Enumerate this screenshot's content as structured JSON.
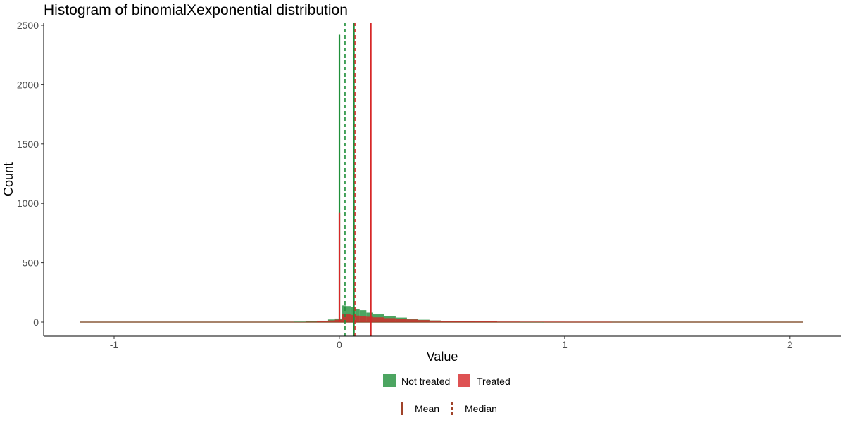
{
  "colors": {
    "not_treated": "#1f8f3a",
    "treated": "#d62728",
    "legend_line": "#a0432a",
    "axis": "#000000"
  },
  "chart_data": {
    "type": "histogram",
    "title": "Histogram of binomialXexponential distribution",
    "xlabel": "Value",
    "ylabel": "Count",
    "xlim": [
      -1.15,
      2.06
    ],
    "ylim": [
      0,
      2500
    ],
    "x_ticks": [
      -1,
      0,
      1,
      2
    ],
    "y_ticks": [
      0,
      500,
      1000,
      1500,
      2000,
      2500
    ],
    "grid": false,
    "legend_position": "bottom",
    "series": [
      {
        "name": "Not treated",
        "color_key": "not_treated",
        "spike_x": 0.0,
        "spike_count": 2420,
        "bins": [
          {
            "x": -0.2,
            "count": 3
          },
          {
            "x": -0.15,
            "count": 6
          },
          {
            "x": -0.1,
            "count": 12
          },
          {
            "x": -0.05,
            "count": 22
          },
          {
            "x": -0.02,
            "count": 30
          },
          {
            "x": 0.01,
            "count": 140
          },
          {
            "x": 0.03,
            "count": 135
          },
          {
            "x": 0.05,
            "count": 125
          },
          {
            "x": 0.07,
            "count": 110
          },
          {
            "x": 0.09,
            "count": 100
          },
          {
            "x": 0.12,
            "count": 80
          },
          {
            "x": 0.15,
            "count": 65
          },
          {
            "x": 0.2,
            "count": 50
          },
          {
            "x": 0.25,
            "count": 38
          },
          {
            "x": 0.3,
            "count": 28
          },
          {
            "x": 0.35,
            "count": 20
          },
          {
            "x": 0.4,
            "count": 14
          },
          {
            "x": 0.45,
            "count": 10
          },
          {
            "x": 0.5,
            "count": 8
          },
          {
            "x": 0.6,
            "count": 5
          },
          {
            "x": 0.7,
            "count": 3
          },
          {
            "x": 0.8,
            "count": 2
          },
          {
            "x": 0.9,
            "count": 1
          }
        ],
        "mean": 0.065,
        "median": 0.025
      },
      {
        "name": "Treated",
        "color_key": "treated",
        "spike_x": 0.0,
        "spike_count": 920,
        "bins": [
          {
            "x": -0.15,
            "count": 3
          },
          {
            "x": -0.1,
            "count": 8
          },
          {
            "x": -0.05,
            "count": 14
          },
          {
            "x": -0.02,
            "count": 20
          },
          {
            "x": 0.01,
            "count": 70
          },
          {
            "x": 0.03,
            "count": 65
          },
          {
            "x": 0.05,
            "count": 60
          },
          {
            "x": 0.07,
            "count": 55
          },
          {
            "x": 0.09,
            "count": 50
          },
          {
            "x": 0.12,
            "count": 45
          },
          {
            "x": 0.15,
            "count": 40
          },
          {
            "x": 0.2,
            "count": 33
          },
          {
            "x": 0.25,
            "count": 27
          },
          {
            "x": 0.3,
            "count": 22
          },
          {
            "x": 0.35,
            "count": 17
          },
          {
            "x": 0.4,
            "count": 13
          },
          {
            "x": 0.45,
            "count": 10
          },
          {
            "x": 0.5,
            "count": 8
          },
          {
            "x": 0.6,
            "count": 6
          },
          {
            "x": 0.7,
            "count": 4
          },
          {
            "x": 0.8,
            "count": 3
          },
          {
            "x": 1.0,
            "count": 2
          },
          {
            "x": 1.2,
            "count": 1
          }
        ],
        "mean": 0.14,
        "median": 0.07
      }
    ],
    "legend_fill": [
      {
        "label": "Not treated",
        "color_key": "not_treated"
      },
      {
        "label": "Treated",
        "color_key": "treated"
      }
    ],
    "legend_lines": [
      {
        "label": "Mean",
        "style": "solid"
      },
      {
        "label": "Median",
        "style": "dashed"
      }
    ]
  }
}
